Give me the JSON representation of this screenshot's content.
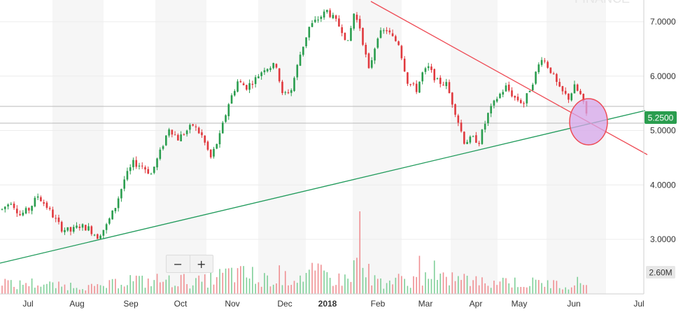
{
  "watermark": "FINANCE",
  "zoom": {
    "zoom_out_label": "−",
    "zoom_in_label": "+"
  },
  "chart_data": {
    "type": "candlestick",
    "x_tick_labels": [
      "Jul",
      "Aug",
      "Sep",
      "Oct",
      "Nov",
      "Dec",
      "2018",
      "Feb",
      "Mar",
      "Apr",
      "May",
      "Jun",
      "Jul"
    ],
    "y_tick_labels": [
      "3.0000",
      "4.0000",
      "5.0000",
      "6.0000",
      "7.0000"
    ],
    "ylim": [
      2.5,
      7.4
    ],
    "grid": "alternating vertical month bands",
    "current_price": {
      "value": 5.25,
      "label": "5.2500",
      "color": "#2a9d4e"
    },
    "volume_max_label": "2.60M",
    "colors": {
      "up": "#2a9d4e",
      "down": "#e0393e",
      "trend_up": "#1f9a5a",
      "trend_down": "#ee4b55",
      "highlight_fill": "#d6a6ea",
      "highlight_stroke": "#ee4b55"
    },
    "price_path": [
      [
        0,
        3.55
      ],
      [
        3,
        3.7
      ],
      [
        6,
        3.45
      ],
      [
        9,
        3.55
      ],
      [
        12,
        3.8
      ],
      [
        15,
        3.6
      ],
      [
        18,
        3.35
      ],
      [
        20,
        3.2
      ],
      [
        23,
        3.15
      ],
      [
        26,
        3.25
      ],
      [
        29,
        3.2
      ],
      [
        32,
        3.05
      ],
      [
        35,
        3.25
      ],
      [
        38,
        3.6
      ],
      [
        41,
        4.1
      ],
      [
        44,
        4.4
      ],
      [
        47,
        4.35
      ],
      [
        50,
        4.2
      ],
      [
        53,
        4.6
      ],
      [
        56,
        5.05
      ],
      [
        59,
        4.85
      ],
      [
        62,
        5.0
      ],
      [
        64,
        5.1
      ],
      [
        67,
        4.9
      ],
      [
        70,
        4.5
      ],
      [
        73,
        4.9
      ],
      [
        76,
        5.5
      ],
      [
        79,
        5.9
      ],
      [
        82,
        5.8
      ],
      [
        85,
        5.95
      ],
      [
        88,
        6.15
      ],
      [
        92,
        6.2
      ],
      [
        94,
        5.65
      ],
      [
        97,
        5.75
      ],
      [
        100,
        6.4
      ],
      [
        103,
        6.9
      ],
      [
        106,
        7.05
      ],
      [
        109,
        7.2
      ],
      [
        112,
        7.0
      ],
      [
        114,
        6.85
      ],
      [
        116,
        6.6
      ],
      [
        118,
        7.15
      ],
      [
        120,
        6.9
      ],
      [
        123,
        6.1
      ],
      [
        126,
        6.75
      ],
      [
        129,
        6.85
      ],
      [
        131,
        6.7
      ],
      [
        133,
        6.6
      ],
      [
        136,
        5.9
      ],
      [
        139,
        5.75
      ],
      [
        141,
        6.05
      ],
      [
        143,
        6.15
      ],
      [
        146,
        5.9
      ],
      [
        149,
        5.85
      ],
      [
        152,
        5.35
      ],
      [
        155,
        4.8
      ],
      [
        158,
        4.85
      ],
      [
        160,
        4.8
      ],
      [
        163,
        5.3
      ],
      [
        166,
        5.6
      ],
      [
        169,
        5.8
      ],
      [
        172,
        5.6
      ],
      [
        175,
        5.5
      ],
      [
        178,
        5.9
      ],
      [
        181,
        6.35
      ],
      [
        184,
        6.1
      ],
      [
        187,
        5.75
      ],
      [
        190,
        5.6
      ],
      [
        192,
        5.8
      ],
      [
        194,
        5.65
      ],
      [
        196,
        5.3
      ]
    ],
    "volume_path": [
      [
        0,
        0.55
      ],
      [
        4,
        0.3
      ],
      [
        8,
        0.45
      ],
      [
        12,
        0.4
      ],
      [
        16,
        0.35
      ],
      [
        20,
        0.3
      ],
      [
        24,
        0.35
      ],
      [
        28,
        0.3
      ],
      [
        32,
        0.25
      ],
      [
        36,
        0.35
      ],
      [
        40,
        0.5
      ],
      [
        44,
        0.6
      ],
      [
        48,
        0.45
      ],
      [
        52,
        0.55
      ],
      [
        56,
        0.5
      ],
      [
        60,
        0.55
      ],
      [
        64,
        0.45
      ],
      [
        68,
        0.5
      ],
      [
        72,
        0.65
      ],
      [
        76,
        0.8
      ],
      [
        80,
        0.75
      ],
      [
        84,
        0.7
      ],
      [
        88,
        0.6
      ],
      [
        92,
        0.55
      ],
      [
        96,
        0.6
      ],
      [
        100,
        0.7
      ],
      [
        104,
        0.8
      ],
      [
        108,
        0.75
      ],
      [
        112,
        0.55
      ],
      [
        116,
        0.6
      ],
      [
        120,
        1.4
      ],
      [
        124,
        0.6
      ],
      [
        128,
        0.45
      ],
      [
        132,
        0.55
      ],
      [
        136,
        0.5
      ],
      [
        140,
        0.6
      ],
      [
        144,
        0.5
      ],
      [
        148,
        0.55
      ],
      [
        152,
        0.65
      ],
      [
        156,
        0.55
      ],
      [
        160,
        0.45
      ],
      [
        164,
        0.5
      ],
      [
        168,
        0.55
      ],
      [
        172,
        0.45
      ],
      [
        176,
        0.4
      ],
      [
        180,
        0.45
      ],
      [
        184,
        0.4
      ],
      [
        188,
        0.35
      ],
      [
        192,
        0.45
      ],
      [
        196,
        0.45
      ]
    ],
    "volume_spikes": [
      [
        120,
        2.6
      ],
      [
        140,
        1.2
      ],
      [
        145,
        1.05
      ],
      [
        93,
        0.9
      ],
      [
        84,
        0.85
      ]
    ]
  }
}
